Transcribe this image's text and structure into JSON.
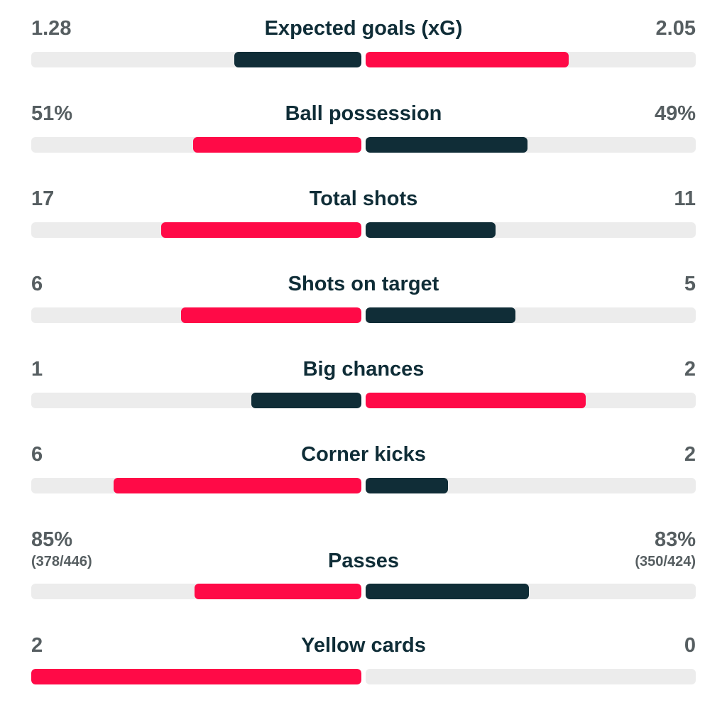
{
  "colors": {
    "leader": "#ff0a47",
    "trailer": "#102d37",
    "track": "#ececec"
  },
  "stats": [
    {
      "title": "Expected goals (xG)",
      "home": "1.28",
      "away": "2.05",
      "home_value": 1.28,
      "away_value": 2.05
    },
    {
      "title": "Ball possession",
      "home": "51%",
      "away": "49%",
      "home_value": 51,
      "away_value": 49
    },
    {
      "title": "Total shots",
      "home": "17",
      "away": "11",
      "home_value": 17,
      "away_value": 11
    },
    {
      "title": "Shots on target",
      "home": "6",
      "away": "5",
      "home_value": 6,
      "away_value": 5
    },
    {
      "title": "Big chances",
      "home": "1",
      "away": "2",
      "home_value": 1,
      "away_value": 2
    },
    {
      "title": "Corner kicks",
      "home": "6",
      "away": "2",
      "home_value": 6,
      "away_value": 2
    },
    {
      "title": "Passes",
      "home": "85%",
      "away": "83%",
      "home_sub": "(378/446)",
      "away_sub": "(350/424)",
      "home_value": 85,
      "away_value": 83
    },
    {
      "title": "Yellow cards",
      "home": "2",
      "away": "0",
      "home_value": 2,
      "away_value": 0
    }
  ]
}
